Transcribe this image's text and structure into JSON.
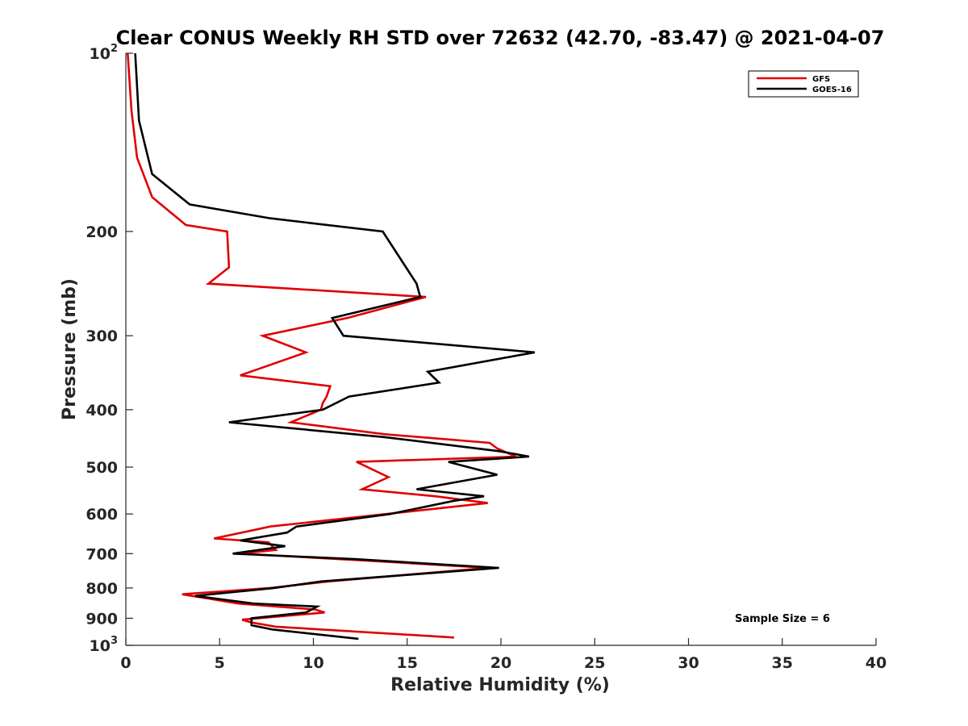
{
  "chart_data": {
    "type": "line",
    "title": "Clear CONUS Weekly RH STD over 72632 (42.70, -83.47) @ 2021-04-07",
    "xlabel": "Relative Humidity (%)",
    "ylabel": "Pressure (mb)",
    "xlim": [
      0,
      40
    ],
    "ylim": [
      100,
      1000
    ],
    "y_scale": "log",
    "y_reversed": true,
    "grid": false,
    "legend_position": "top-right",
    "x_ticks": [
      "0",
      "5",
      "10",
      "15",
      "20",
      "25",
      "30",
      "35",
      "40"
    ],
    "y_ticks": [
      {
        "value": 100,
        "base": "10",
        "exp": "2"
      },
      {
        "value": 200,
        "label": "200"
      },
      {
        "value": 300,
        "label": "300"
      },
      {
        "value": 400,
        "label": "400"
      },
      {
        "value": 500,
        "label": "500"
      },
      {
        "value": 600,
        "label": "600"
      },
      {
        "value": 700,
        "label": "700"
      },
      {
        "value": 800,
        "label": "800"
      },
      {
        "value": 900,
        "label": "900"
      },
      {
        "value": 1000,
        "base": "10",
        "exp": "3"
      }
    ],
    "annotation": "Sample Size = 6",
    "series": [
      {
        "name": "GFS",
        "color": "#e00000",
        "points": [
          [
            0.1,
            100
          ],
          [
            0.3,
            125
          ],
          [
            0.6,
            150
          ],
          [
            1.4,
            175
          ],
          [
            3.2,
            195
          ],
          [
            5.4,
            200
          ],
          [
            5.5,
            230
          ],
          [
            4.4,
            245
          ],
          [
            16.0,
            258
          ],
          [
            11.8,
            280
          ],
          [
            7.3,
            300
          ],
          [
            9.6,
            320
          ],
          [
            6.1,
            350
          ],
          [
            10.9,
            365
          ],
          [
            10.7,
            380
          ],
          [
            10.5,
            390
          ],
          [
            10.4,
            400
          ],
          [
            8.8,
            420
          ],
          [
            13.8,
            440
          ],
          [
            19.4,
            455
          ],
          [
            19.8,
            465
          ],
          [
            20.8,
            480
          ],
          [
            12.3,
            490
          ],
          [
            14.0,
            520
          ],
          [
            12.6,
            545
          ],
          [
            16.5,
            560
          ],
          [
            19.3,
            575
          ],
          [
            7.7,
            630
          ],
          [
            6.7,
            640
          ],
          [
            4.7,
            660
          ],
          [
            7.6,
            670
          ],
          [
            8.0,
            690
          ],
          [
            6.1,
            700
          ],
          [
            13.1,
            720
          ],
          [
            19.3,
            740
          ],
          [
            10.8,
            780
          ],
          [
            7.7,
            800
          ],
          [
            3.0,
            820
          ],
          [
            6.0,
            850
          ],
          [
            10.1,
            870
          ],
          [
            10.6,
            880
          ],
          [
            6.2,
            905
          ],
          [
            6.7,
            915
          ],
          [
            8.0,
            930
          ],
          [
            17.5,
            970
          ]
        ]
      },
      {
        "name": "GOES-16",
        "color": "#000000",
        "points": [
          [
            0.5,
            100
          ],
          [
            0.7,
            130
          ],
          [
            1.4,
            160
          ],
          [
            3.4,
            180
          ],
          [
            7.7,
            190
          ],
          [
            13.7,
            200
          ],
          [
            15.5,
            245
          ],
          [
            15.7,
            258
          ],
          [
            11.0,
            280
          ],
          [
            11.6,
            300
          ],
          [
            21.8,
            320
          ],
          [
            16.1,
            345
          ],
          [
            16.7,
            360
          ],
          [
            11.9,
            380
          ],
          [
            10.5,
            400
          ],
          [
            5.5,
            420
          ],
          [
            13.8,
            445
          ],
          [
            19.9,
            470
          ],
          [
            21.5,
            480
          ],
          [
            17.2,
            490
          ],
          [
            19.8,
            515
          ],
          [
            15.5,
            545
          ],
          [
            19.1,
            560
          ],
          [
            17.5,
            570
          ],
          [
            14.1,
            600
          ],
          [
            9.1,
            630
          ],
          [
            8.6,
            645
          ],
          [
            6.1,
            665
          ],
          [
            8.5,
            680
          ],
          [
            5.7,
            700
          ],
          [
            12.2,
            715
          ],
          [
            19.9,
            740
          ],
          [
            10.4,
            780
          ],
          [
            7.9,
            800
          ],
          [
            3.7,
            825
          ],
          [
            6.8,
            850
          ],
          [
            10.2,
            860
          ],
          [
            9.6,
            880
          ],
          [
            6.7,
            900
          ],
          [
            6.7,
            925
          ],
          [
            7.8,
            940
          ],
          [
            12.4,
            975
          ]
        ]
      }
    ]
  }
}
